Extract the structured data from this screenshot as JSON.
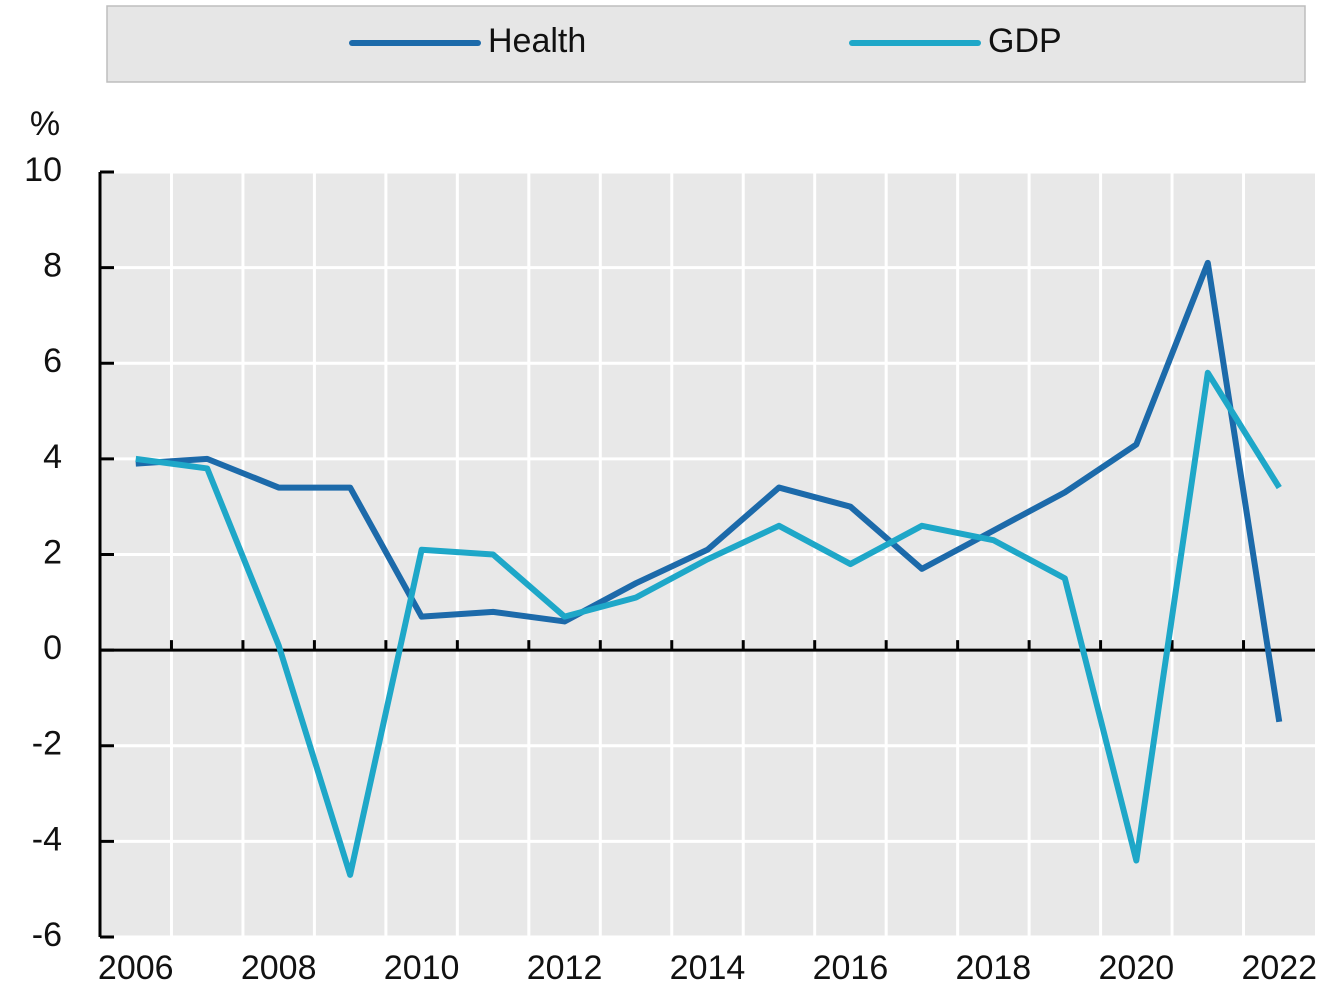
{
  "chart_data": {
    "type": "line",
    "y_label": "%",
    "categories": [
      "2006",
      null,
      "2008",
      null,
      "2010",
      null,
      "2012",
      null,
      "2014",
      null,
      "2016",
      null,
      "2018",
      null,
      "2020",
      null,
      "2022"
    ],
    "series": [
      {
        "name": "Health",
        "color": "#1c6aaa",
        "values": [
          3.9,
          4.0,
          3.4,
          3.4,
          0.7,
          0.8,
          0.6,
          1.4,
          2.1,
          3.4,
          3.0,
          1.7,
          2.5,
          3.3,
          4.3,
          8.1,
          -1.5
        ]
      },
      {
        "name": "GDP",
        "color": "#1ea7c8",
        "values": [
          4.0,
          3.8,
          0.1,
          -4.7,
          2.1,
          2.0,
          0.7,
          1.1,
          1.9,
          2.6,
          1.8,
          2.6,
          2.3,
          1.5,
          -4.4,
          5.8,
          3.4
        ]
      }
    ],
    "ylim": [
      -6,
      10
    ],
    "yticks": [
      -6,
      -4,
      -2,
      0,
      2,
      4,
      6,
      8,
      10
    ],
    "grid": true,
    "legend": "top"
  }
}
